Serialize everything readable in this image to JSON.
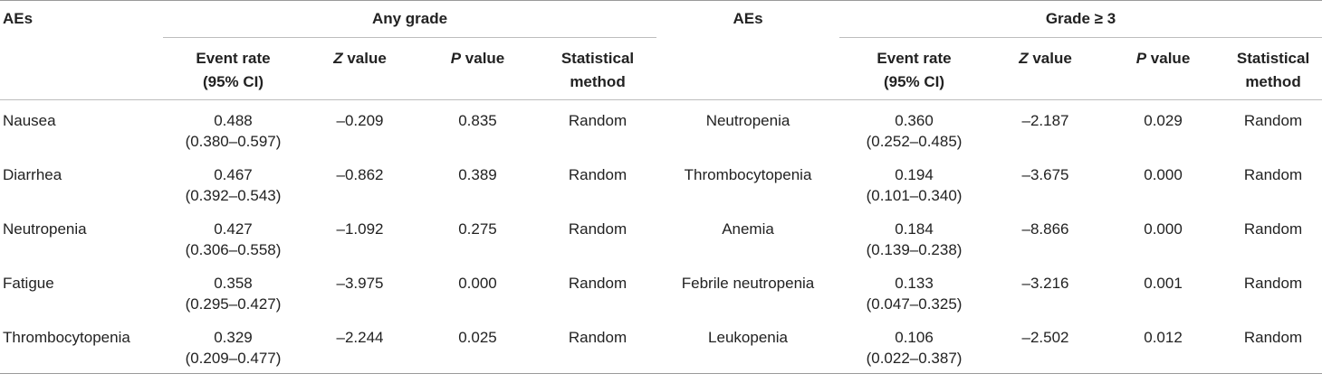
{
  "header": {
    "aes_left": "AEs",
    "any_grade": "Any grade",
    "aes_right": "AEs",
    "grade3": "Grade ≥ 3",
    "event_rate_l1": "Event rate",
    "event_rate_l2": "(95% CI)",
    "z_italic": "Z",
    "z_rest": " value",
    "p_italic": "P",
    "p_rest": " value",
    "stat_l1": "Statistical",
    "stat_l2": "method"
  },
  "rows": [
    {
      "ae_left": "Nausea",
      "rate_left": "0.488",
      "ci_left": "(0.380–0.597)",
      "z_left": "–0.209",
      "p_left": "0.835",
      "method_left": "Random",
      "ae_right": "Neutropenia",
      "rate_right": "0.360",
      "ci_right": "(0.252–0.485)",
      "z_right": "–2.187",
      "p_right": "0.029",
      "method_right": "Random"
    },
    {
      "ae_left": "Diarrhea",
      "rate_left": "0.467",
      "ci_left": "(0.392–0.543)",
      "z_left": "–0.862",
      "p_left": "0.389",
      "method_left": "Random",
      "ae_right": "Thrombocytopenia",
      "rate_right": "0.194",
      "ci_right": "(0.101–0.340)",
      "z_right": "–3.675",
      "p_right": "0.000",
      "method_right": "Random"
    },
    {
      "ae_left": "Neutropenia",
      "rate_left": "0.427",
      "ci_left": "(0.306–0.558)",
      "z_left": "–1.092",
      "p_left": "0.275",
      "method_left": "Random",
      "ae_right": "Anemia",
      "rate_right": "0.184",
      "ci_right": "(0.139–0.238)",
      "z_right": "–8.866",
      "p_right": "0.000",
      "method_right": "Random"
    },
    {
      "ae_left": "Fatigue",
      "rate_left": "0.358",
      "ci_left": "(0.295–0.427)",
      "z_left": "–3.975",
      "p_left": "0.000",
      "method_left": "Random",
      "ae_right": "Febrile neutropenia",
      "rate_right": "0.133",
      "ci_right": "(0.047–0.325)",
      "z_right": "–3.216",
      "p_right": "0.001",
      "method_right": "Random"
    },
    {
      "ae_left": "Thrombocytopenia",
      "rate_left": "0.329",
      "ci_left": "(0.209–0.477)",
      "z_left": "–2.244",
      "p_left": "0.025",
      "method_left": "Random",
      "ae_right": "Leukopenia",
      "rate_right": "0.106",
      "ci_right": "(0.022–0.387)",
      "z_right": "–2.502",
      "p_right": "0.012",
      "method_right": "Random"
    }
  ]
}
